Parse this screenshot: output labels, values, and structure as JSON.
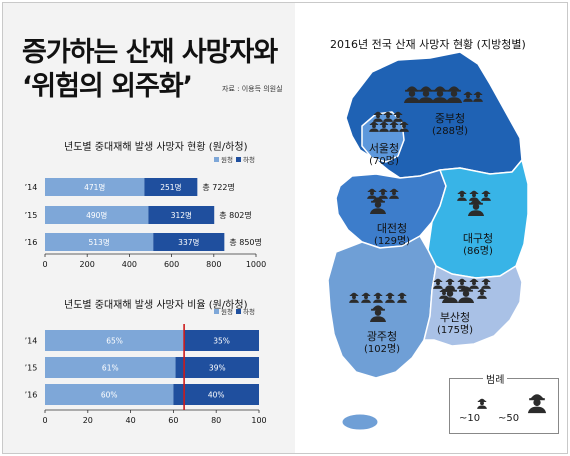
{
  "headline": {
    "line1": "증가하는 산재 사망자와",
    "line2": "‘위험의 외주화’",
    "source": "자료 : 이용득 의원실"
  },
  "chart_data": [
    {
      "type": "bar",
      "stacked": true,
      "orientation": "horizontal",
      "title": "년도별 중대재해 발생 사망자 현황 (원/하청)",
      "categories": [
        "’14",
        "’15",
        "’16"
      ],
      "series": [
        {
          "name": "원청",
          "values": [
            471,
            490,
            513
          ],
          "labels": [
            "471명",
            "490명",
            "513명"
          ]
        },
        {
          "name": "하청",
          "values": [
            251,
            312,
            337
          ],
          "labels": [
            "251명",
            "312명",
            "337명"
          ]
        }
      ],
      "totals": [
        "총 722명",
        "총 802명",
        "총 850명"
      ],
      "xlim": [
        0,
        1000
      ],
      "xticks": [
        "0",
        "200",
        "400",
        "600",
        "800",
        "1000"
      ],
      "legend": "top-right",
      "grid": false
    },
    {
      "type": "bar",
      "stacked": true,
      "orientation": "horizontal",
      "title": "년도별 중대재해 발생 사망자 비율 (원/하청)",
      "categories": [
        "’14",
        "’15",
        "’16"
      ],
      "series": [
        {
          "name": "원청",
          "values": [
            65,
            61,
            60
          ],
          "labels": [
            "65%",
            "61%",
            "60%"
          ]
        },
        {
          "name": "하청",
          "values": [
            35,
            39,
            40
          ],
          "labels": [
            "35%",
            "39%",
            "40%"
          ]
        }
      ],
      "reference_line": 65,
      "xlim": [
        0,
        100
      ],
      "xticks": [
        "0",
        "20",
        "40",
        "60",
        "80",
        "100"
      ],
      "legend": "top-right",
      "grid": false
    }
  ],
  "map": {
    "title": "2016년 전국 산재 사망자 현황 (지방청별)",
    "regions": [
      {
        "name": "중부청",
        "count": "(288명)",
        "fill": "#1f62b4",
        "icons_large": 4,
        "icons_small": 2
      },
      {
        "name": "서울청",
        "count": "(70명)",
        "fill": "#5d98dc",
        "icons_large": 0,
        "icons_small": 7
      },
      {
        "name": "대전청",
        "count": "(129명)",
        "fill": "#3d7dcb",
        "icons_large": 1,
        "icons_small": 3
      },
      {
        "name": "대구청",
        "count": "(86명)",
        "fill": "#38b4e7",
        "icons_large": 1,
        "icons_small": 3
      },
      {
        "name": "광주청",
        "count": "(102명)",
        "fill": "#6f9fd6",
        "icons_large": 1,
        "icons_small": 5
      },
      {
        "name": "부산청",
        "count": "(175명)",
        "fill": "#a9c1e6",
        "icons_large": 2,
        "icons_small": 7
      }
    ],
    "legend": {
      "title": "범례",
      "small": "~10",
      "large": "~50"
    }
  },
  "colors": {
    "prime": "#7ea7d8",
    "sub": "#1f4f9e",
    "refline": "#cc1b1b",
    "icon": "#2b2b2b",
    "sea": "#ffffff"
  }
}
